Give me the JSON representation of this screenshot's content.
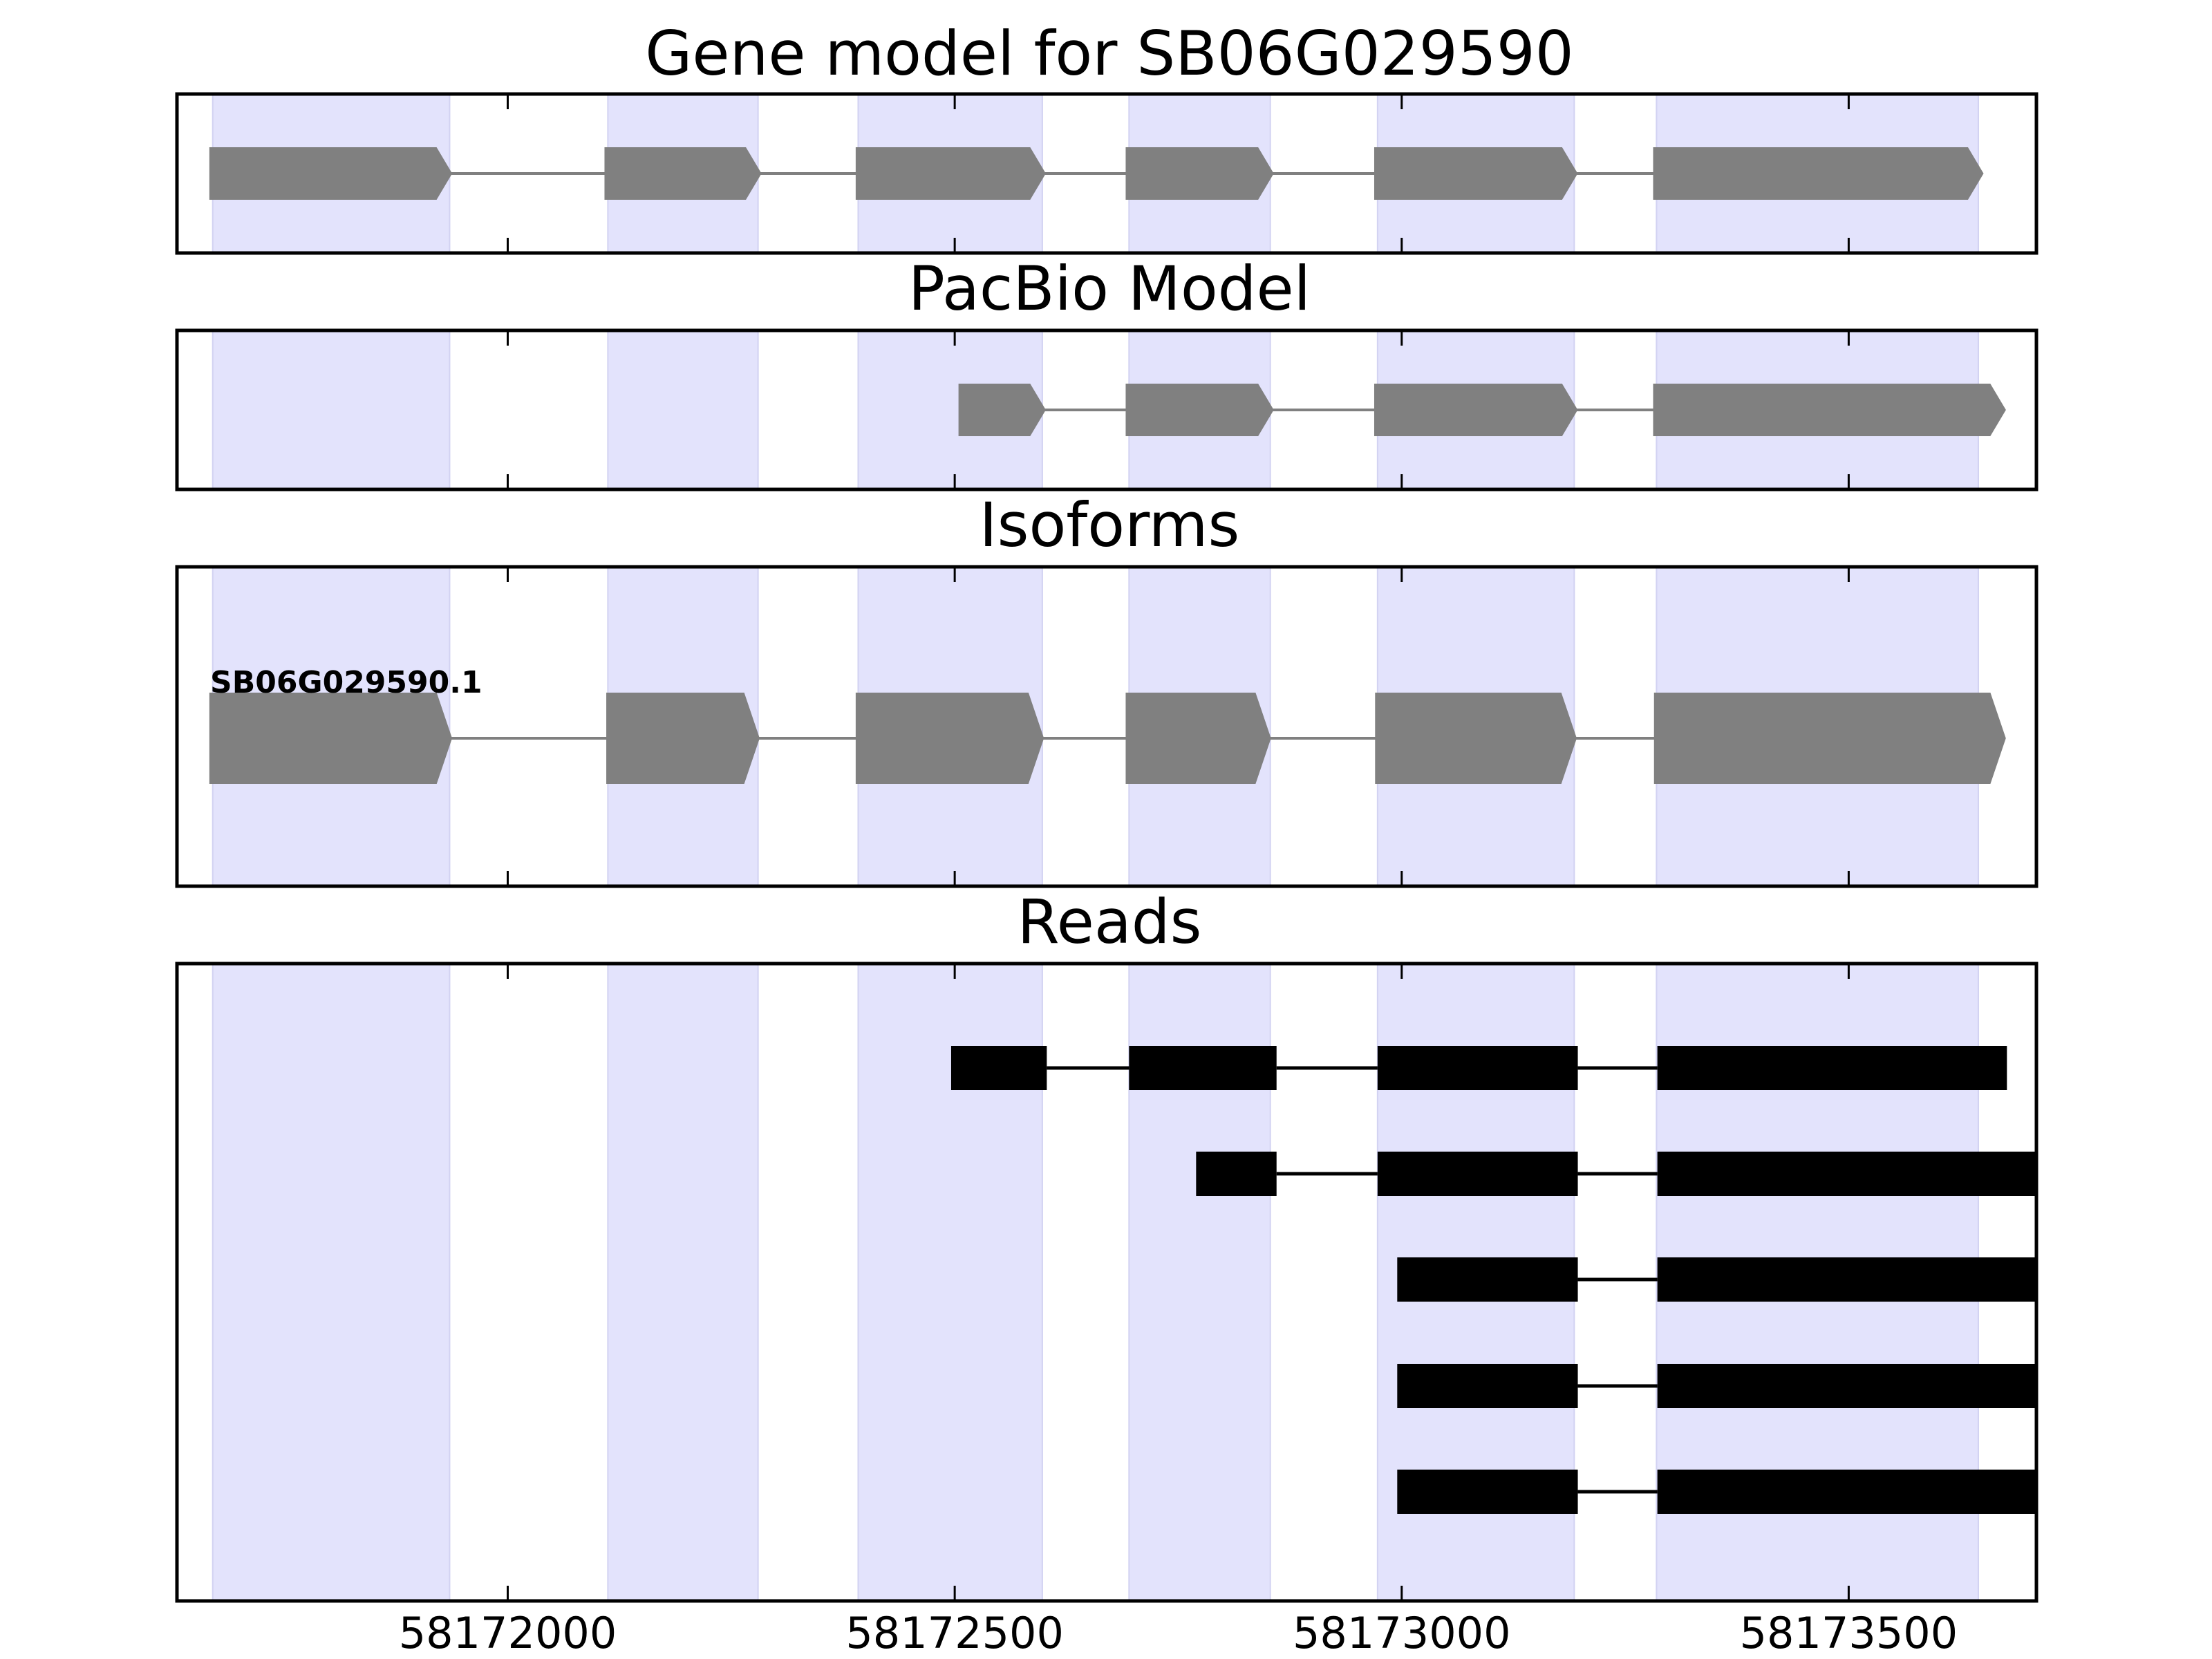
{
  "titles": {
    "gene_model": "Gene model for SB06G029590",
    "pacbio": "PacBio Model",
    "isoforms": "Isoforms",
    "reads": "Reads"
  },
  "isoform_label": "SB06G029590.1",
  "colors": {
    "exon_fill": "#808080",
    "intron_line": "#808080",
    "read_fill": "#000000",
    "highlight": "#e3e3fc",
    "frame": "#000000"
  },
  "chart_data": {
    "type": "gene-structure",
    "xlim": [
      58171630,
      58173710
    ],
    "xticks": [
      58172000,
      58172500,
      58173000,
      58173500
    ],
    "xtick_labels": [
      "58172000",
      "58172500",
      "58173000",
      "58173500"
    ],
    "highlight_regions": [
      [
        58171670,
        58171935
      ],
      [
        58172112,
        58172280
      ],
      [
        58172392,
        58172598
      ],
      [
        58172695,
        58172853
      ],
      [
        58172973,
        58173193
      ],
      [
        58173285,
        58173645
      ]
    ],
    "gene_model": [
      [
        58171667,
        58171937
      ],
      [
        58172109,
        58172283
      ],
      [
        58172390,
        58172601
      ],
      [
        58172692,
        58172856
      ],
      [
        58172970,
        58173196
      ],
      [
        58173282,
        58173650
      ]
    ],
    "pacbio_model": [
      [
        58172505,
        58172601
      ],
      [
        58172692,
        58172856
      ],
      [
        58172970,
        58173196
      ],
      [
        58173282,
        58173675
      ]
    ],
    "isoforms": [
      {
        "name": "SB06G029590.1",
        "exons": [
          [
            58171667,
            58171937
          ],
          [
            58172111,
            58172281
          ],
          [
            58172390,
            58172599
          ],
          [
            58172692,
            58172853
          ],
          [
            58172971,
            58173195
          ],
          [
            58173283,
            58173675
          ]
        ]
      }
    ],
    "reads": [
      [
        [
          58172496,
          58172603
        ],
        [
          58172695,
          58172860
        ],
        [
          58172973,
          58173197
        ],
        [
          58173286,
          58173677
        ]
      ],
      [
        [
          58172770,
          58172860
        ],
        [
          58172973,
          58173197
        ],
        [
          58173286,
          58173710
        ]
      ],
      [
        [
          58172995,
          58173197
        ],
        [
          58173286,
          58173710
        ]
      ],
      [
        [
          58172995,
          58173197
        ],
        [
          58173286,
          58173710
        ]
      ],
      [
        [
          58172995,
          58173197
        ],
        [
          58173286,
          58173710
        ]
      ]
    ]
  }
}
